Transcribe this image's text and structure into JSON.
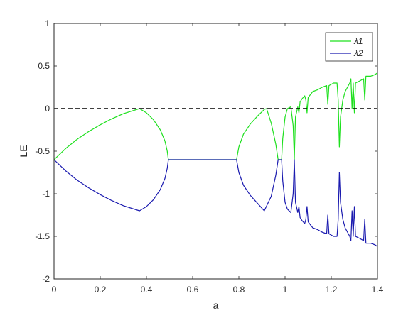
{
  "chart_data": {
    "type": "line",
    "title": "",
    "xlabel": "a",
    "ylabel": "LE",
    "xlim": [
      0,
      1.4
    ],
    "ylim": [
      -2,
      1
    ],
    "xticks": [
      0,
      0.2,
      0.4,
      0.6,
      0.8,
      1,
      1.2,
      1.4
    ],
    "yticks": [
      -2,
      -1.5,
      -1,
      -0.5,
      0,
      0.5,
      1
    ],
    "xtick_labels": [
      "0",
      "0.2",
      "0.4",
      "0.6",
      "0.8",
      "1",
      "1.2",
      "1.4"
    ],
    "ytick_labels": [
      "-2",
      "-1.5",
      "-1",
      "-0.5",
      "0",
      "0.5",
      "1"
    ],
    "grid": false,
    "legend": {
      "placement": "top-right"
    },
    "reference_line": {
      "y": 0,
      "style": "dashed",
      "color": "#000000"
    },
    "series": [
      {
        "name": "λ1",
        "color": "#1ee01e",
        "points": [
          [
            0,
            -0.6
          ],
          [
            0.05,
            -0.47
          ],
          [
            0.1,
            -0.36
          ],
          [
            0.15,
            -0.27
          ],
          [
            0.2,
            -0.19
          ],
          [
            0.25,
            -0.12
          ],
          [
            0.3,
            -0.06
          ],
          [
            0.37,
            0
          ],
          [
            0.4,
            -0.05
          ],
          [
            0.43,
            -0.13
          ],
          [
            0.46,
            -0.25
          ],
          [
            0.48,
            -0.38
          ],
          [
            0.49,
            -0.5
          ],
          [
            0.495,
            -0.6
          ],
          [
            0.6,
            -0.6
          ],
          [
            0.7,
            -0.6
          ],
          [
            0.79,
            -0.6
          ],
          [
            0.8,
            -0.45
          ],
          [
            0.82,
            -0.3
          ],
          [
            0.85,
            -0.18
          ],
          [
            0.88,
            -0.09
          ],
          [
            0.91,
            -0.01
          ],
          [
            0.92,
            0
          ],
          [
            0.94,
            -0.17
          ],
          [
            0.96,
            -0.42
          ],
          [
            0.97,
            -0.6
          ],
          [
            0.985,
            -0.6
          ],
          [
            0.99,
            -0.35
          ],
          [
            1.0,
            -0.1
          ],
          [
            1.01,
            0
          ],
          [
            1.025,
            0.02
          ],
          [
            1.035,
            -0.2
          ],
          [
            1.04,
            -0.6
          ],
          [
            1.045,
            -0.1
          ],
          [
            1.055,
            0.02
          ],
          [
            1.06,
            -0.05
          ],
          [
            1.065,
            0.08
          ],
          [
            1.075,
            0.12
          ],
          [
            1.085,
            0.15
          ],
          [
            1.09,
            0.1
          ],
          [
            1.095,
            -0.05
          ],
          [
            1.1,
            0.13
          ],
          [
            1.12,
            0.2
          ],
          [
            1.14,
            0.22
          ],
          [
            1.16,
            0.25
          ],
          [
            1.18,
            0.27
          ],
          [
            1.185,
            0.05
          ],
          [
            1.19,
            0.27
          ],
          [
            1.21,
            0.3
          ],
          [
            1.225,
            0.3
          ],
          [
            1.23,
            0.1
          ],
          [
            1.235,
            -0.45
          ],
          [
            1.24,
            -0.1
          ],
          [
            1.25,
            0.1
          ],
          [
            1.26,
            0.2
          ],
          [
            1.27,
            0.25
          ],
          [
            1.28,
            0.3
          ],
          [
            1.285,
            0.35
          ],
          [
            1.29,
            0.0
          ],
          [
            1.295,
            0.3
          ],
          [
            1.3,
            -0.05
          ],
          [
            1.305,
            0.3
          ],
          [
            1.32,
            0.32
          ],
          [
            1.34,
            0.35
          ],
          [
            1.345,
            0.1
          ],
          [
            1.35,
            0.38
          ],
          [
            1.37,
            0.38
          ],
          [
            1.39,
            0.4
          ],
          [
            1.4,
            0.42
          ]
        ]
      },
      {
        "name": "λ2",
        "color": "#1a1aaf",
        "points": [
          [
            0,
            -0.6
          ],
          [
            0.05,
            -0.73
          ],
          [
            0.1,
            -0.84
          ],
          [
            0.15,
            -0.93
          ],
          [
            0.2,
            -1.01
          ],
          [
            0.25,
            -1.08
          ],
          [
            0.3,
            -1.14
          ],
          [
            0.37,
            -1.2
          ],
          [
            0.4,
            -1.15
          ],
          [
            0.43,
            -1.07
          ],
          [
            0.46,
            -0.95
          ],
          [
            0.48,
            -0.82
          ],
          [
            0.49,
            -0.7
          ],
          [
            0.495,
            -0.6
          ],
          [
            0.6,
            -0.6
          ],
          [
            0.7,
            -0.6
          ],
          [
            0.79,
            -0.6
          ],
          [
            0.8,
            -0.75
          ],
          [
            0.82,
            -0.9
          ],
          [
            0.85,
            -1.02
          ],
          [
            0.88,
            -1.11
          ],
          [
            0.91,
            -1.2
          ],
          [
            0.94,
            -1.03
          ],
          [
            0.96,
            -0.78
          ],
          [
            0.97,
            -0.6
          ],
          [
            0.985,
            -0.6
          ],
          [
            0.99,
            -0.85
          ],
          [
            1.0,
            -1.1
          ],
          [
            1.01,
            -1.18
          ],
          [
            1.025,
            -1.22
          ],
          [
            1.035,
            -1.0
          ],
          [
            1.04,
            -0.6
          ],
          [
            1.045,
            -1.1
          ],
          [
            1.055,
            -1.22
          ],
          [
            1.06,
            -1.15
          ],
          [
            1.065,
            -1.28
          ],
          [
            1.075,
            -1.32
          ],
          [
            1.085,
            -1.35
          ],
          [
            1.09,
            -1.3
          ],
          [
            1.095,
            -1.15
          ],
          [
            1.1,
            -1.33
          ],
          [
            1.12,
            -1.4
          ],
          [
            1.14,
            -1.42
          ],
          [
            1.16,
            -1.45
          ],
          [
            1.18,
            -1.47
          ],
          [
            1.185,
            -1.25
          ],
          [
            1.19,
            -1.47
          ],
          [
            1.21,
            -1.5
          ],
          [
            1.225,
            -1.5
          ],
          [
            1.23,
            -1.3
          ],
          [
            1.235,
            -0.75
          ],
          [
            1.24,
            -1.1
          ],
          [
            1.25,
            -1.3
          ],
          [
            1.26,
            -1.4
          ],
          [
            1.27,
            -1.45
          ],
          [
            1.28,
            -1.5
          ],
          [
            1.285,
            -1.55
          ],
          [
            1.29,
            -1.2
          ],
          [
            1.295,
            -1.5
          ],
          [
            1.3,
            -1.15
          ],
          [
            1.305,
            -1.5
          ],
          [
            1.32,
            -1.52
          ],
          [
            1.34,
            -1.55
          ],
          [
            1.345,
            -1.3
          ],
          [
            1.35,
            -1.58
          ],
          [
            1.37,
            -1.58
          ],
          [
            1.39,
            -1.6
          ],
          [
            1.4,
            -1.62
          ]
        ]
      }
    ]
  }
}
